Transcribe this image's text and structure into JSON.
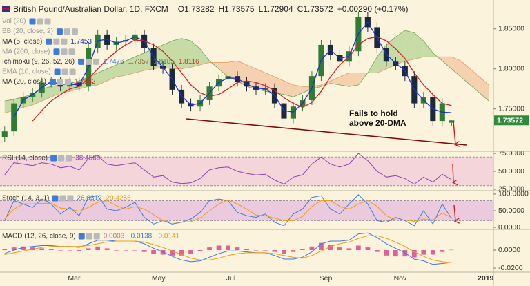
{
  "chart_data": {
    "type": "candlestick",
    "title": "British Pound/Australian Dollar, 1D, FXCM",
    "ohlc": [
      {
        "name": "O",
        "value": 1.73282
      },
      {
        "name": "H",
        "value": 1.73575
      },
      {
        "name": "L",
        "value": 1.72904
      },
      {
        "name": "C",
        "value": 1.73572
      }
    ],
    "change": "+0.00290 (+0.17%)",
    "categories": [
      null,
      null,
      null,
      null,
      null,
      null,
      null,
      "Mar",
      null,
      null,
      null,
      null,
      null,
      null,
      null,
      null,
      "May",
      null,
      null,
      null,
      null,
      null,
      null,
      null,
      "Jul",
      null,
      null,
      null,
      null,
      null,
      null,
      null,
      null,
      null,
      "Sep",
      null,
      null,
      null,
      null,
      null,
      null,
      null,
      "Nov",
      null,
      null,
      null,
      null,
      null,
      null,
      null,
      null,
      "2019",
      null
    ],
    "open": [
      1.715,
      1.722,
      1.757,
      1.765,
      1.77,
      1.783,
      1.784,
      1.778,
      1.783,
      1.778,
      1.826,
      1.843,
      1.83,
      1.834,
      1.836,
      1.843,
      1.826,
      1.804,
      1.8,
      1.774,
      1.757,
      1.753,
      1.761,
      1.778,
      1.787,
      1.791,
      1.784,
      1.778,
      1.774,
      1.776,
      1.757,
      1.738,
      1.753,
      1.761,
      1.791,
      1.83,
      1.817,
      1.809,
      1.822,
      1.865,
      1.852,
      1.826,
      1.809,
      1.804,
      1.791,
      1.757,
      1.765,
      1.735,
      1.73282,
      null,
      null,
      null,
      null
    ],
    "high": [
      1.728,
      1.763,
      1.771,
      1.776,
      1.789,
      1.79,
      1.79,
      1.789,
      1.789,
      1.832,
      1.849,
      1.849,
      1.84,
      1.842,
      1.849,
      1.849,
      1.832,
      1.81,
      1.806,
      1.78,
      1.763,
      1.767,
      1.784,
      1.793,
      1.797,
      1.797,
      1.79,
      1.784,
      1.782,
      1.782,
      1.763,
      1.759,
      1.767,
      1.797,
      1.836,
      1.836,
      1.823,
      1.828,
      1.871,
      1.871,
      1.858,
      1.832,
      1.815,
      1.81,
      1.797,
      1.771,
      1.771,
      1.763,
      1.73575,
      null,
      null,
      null,
      null
    ],
    "low": [
      1.709,
      1.716,
      1.751,
      1.759,
      1.764,
      1.777,
      1.772,
      1.772,
      1.772,
      1.772,
      1.82,
      1.824,
      1.824,
      1.828,
      1.83,
      1.82,
      1.798,
      1.794,
      1.768,
      1.751,
      1.747,
      1.747,
      1.755,
      1.772,
      1.781,
      1.778,
      1.772,
      1.768,
      1.768,
      1.751,
      1.732,
      1.732,
      1.747,
      1.755,
      1.785,
      1.811,
      1.803,
      1.803,
      1.816,
      1.846,
      1.82,
      1.803,
      1.798,
      1.785,
      1.751,
      1.751,
      1.729,
      1.729,
      1.72904,
      null,
      null,
      null,
      null
    ],
    "close": [
      1.722,
      1.757,
      1.765,
      1.77,
      1.783,
      1.784,
      1.778,
      1.783,
      1.778,
      1.826,
      1.843,
      1.83,
      1.834,
      1.836,
      1.843,
      1.826,
      1.804,
      1.8,
      1.774,
      1.757,
      1.753,
      1.761,
      1.778,
      1.787,
      1.791,
      1.784,
      1.778,
      1.774,
      1.776,
      1.757,
      1.738,
      1.753,
      1.761,
      1.791,
      1.83,
      1.817,
      1.809,
      1.822,
      1.865,
      1.852,
      1.826,
      1.809,
      1.804,
      1.791,
      1.757,
      1.765,
      1.735,
      1.757,
      1.73572,
      null,
      null,
      null,
      null
    ],
    "up_color": "#2e7d32",
    "down_color": "#1b2a3a",
    "last_price_color": "#2e8b3a",
    "ylim": [
      1.698,
      1.886
    ],
    "yticks": [
      {
        "value": 1.85,
        "label": "1.85000"
      },
      {
        "value": 1.8,
        "label": "1.80000"
      },
      {
        "value": 1.75,
        "label": "1.75000"
      }
    ],
    "overlays": [
      {
        "name": "Vol (20)",
        "active": false
      },
      {
        "name": "BB (20, close, 2)",
        "active": false
      },
      {
        "name": "MA (5, close)",
        "active": true,
        "color": "#1f2fd6",
        "values": [
          null,
          1.74,
          1.761,
          1.768,
          1.777,
          1.784,
          1.781,
          1.781,
          1.78,
          1.802,
          1.835,
          1.837,
          1.832,
          1.835,
          1.84,
          1.835,
          1.815,
          1.802,
          1.787,
          1.766,
          1.755,
          1.757,
          1.77,
          1.783,
          1.789,
          1.788,
          1.781,
          1.776,
          1.775,
          1.767,
          1.748,
          1.746,
          1.757,
          1.776,
          1.811,
          1.824,
          1.813,
          1.816,
          1.844,
          1.858,
          1.839,
          1.818,
          1.807,
          1.798,
          1.774,
          1.761,
          1.75,
          1.746,
          1.7453,
          null,
          null,
          null,
          null
        ]
      },
      {
        "name": "MA (200, close)",
        "active": false
      },
      {
        "name": "Ichimoku (9, 26, 52, 26)",
        "active": true,
        "readouts": [
          1.7476,
          1.7357,
          1.8185,
          1.8116
        ],
        "readout_colors": [
          "#1f6fd6",
          "#8a6d3b",
          "#3e8e2e",
          "#c0392b"
        ],
        "up_color": "#9cc77a",
        "down_color": "#f2b48c",
        "span_a_color": "#6aa84f",
        "span_b_color": "#e59866",
        "span_a": [
          1.76,
          1.762,
          1.765,
          1.768,
          1.775,
          1.778,
          1.78,
          1.782,
          1.785,
          1.79,
          1.795,
          1.8,
          1.805,
          1.81,
          1.815,
          1.82,
          1.825,
          1.83,
          1.835,
          1.838,
          1.835,
          1.825,
          1.81,
          1.8,
          1.79,
          1.785,
          1.778,
          1.775,
          1.772,
          1.77,
          1.768,
          1.765,
          1.77,
          1.775,
          1.778,
          1.782,
          1.78,
          1.778,
          1.78,
          1.795,
          1.815,
          1.83,
          1.84,
          1.848,
          1.845,
          1.835,
          1.82,
          1.81,
          1.8,
          1.79,
          1.78,
          1.77,
          1.76
        ],
        "span_b": [
          1.745,
          1.748,
          1.752,
          1.755,
          1.76,
          1.765,
          1.77,
          1.772,
          1.775,
          1.778,
          1.78,
          1.785,
          1.79,
          1.792,
          1.795,
          1.798,
          1.8,
          1.802,
          1.8,
          1.8,
          1.802,
          1.805,
          1.808,
          1.808,
          1.808,
          1.81,
          1.805,
          1.8,
          1.795,
          1.79,
          1.785,
          1.78,
          1.778,
          1.778,
          1.78,
          1.785,
          1.79,
          1.795,
          1.795,
          1.795,
          1.795,
          1.8,
          1.805,
          1.81,
          1.812,
          1.815,
          1.815,
          1.815,
          1.815,
          1.81,
          1.8,
          1.79,
          1.78
        ]
      },
      {
        "name": "EMA (10, close)",
        "active": false
      },
      {
        "name": "MA (20, close)",
        "active": true,
        "color": "#d42020",
        "values": [
          null,
          null,
          null,
          1.735,
          1.748,
          1.76,
          1.768,
          1.775,
          1.778,
          1.788,
          1.8,
          1.812,
          1.822,
          1.83,
          1.836,
          1.835,
          1.83,
          1.822,
          1.81,
          1.795,
          1.78,
          1.77,
          1.766,
          1.768,
          1.775,
          1.783,
          1.785,
          1.783,
          1.779,
          1.773,
          1.764,
          1.757,
          1.752,
          1.758,
          1.772,
          1.79,
          1.805,
          1.815,
          1.83,
          1.838,
          1.84,
          1.835,
          1.825,
          1.813,
          1.795,
          1.78,
          1.768,
          1.757,
          1.7542,
          null,
          null,
          null,
          null
        ]
      }
    ],
    "annotations": [
      {
        "lines": [
          "Fails to hold",
          "above 20-DMA"
        ]
      }
    ],
    "panels": [
      {
        "type": "line",
        "name": "RSI (14, close)",
        "ylim": [
          24,
          77
        ],
        "band": [
          30,
          70
        ],
        "band_color": "#f0c8d8",
        "yticks": [
          {
            "value": 75,
            "label": "75.0000"
          },
          {
            "value": 50,
            "label": "50.0000"
          },
          {
            "value": 25,
            "label": "25.0000"
          }
        ],
        "series": [
          {
            "type": "line",
            "color": "#8e44ad",
            "values": [
              45,
              62,
              60,
              58,
              62,
              60,
              55,
              57,
              52,
              68,
              72,
              60,
              58,
              60,
              62,
              52,
              42,
              44,
              35,
              33,
              34,
              40,
              52,
              55,
              56,
              50,
              47,
              45,
              46,
              38,
              32,
              42,
              45,
              60,
              70,
              60,
              56,
              60,
              75,
              65,
              50,
              42,
              44,
              40,
              32,
              42,
              35,
              46,
              38.4569,
              null,
              null,
              null,
              null
            ]
          }
        ]
      },
      {
        "type": "line",
        "name": "Stoch (14, 3, 1)",
        "ylim": [
          -4,
          106
        ],
        "band": [
          20,
          80
        ],
        "band_color": "#e3b8dc",
        "yticks": [
          {
            "value": 100,
            "label": "100.0000"
          },
          {
            "value": 50,
            "label": "50.0000"
          },
          {
            "value": 0,
            "label": "0.0000"
          }
        ],
        "series": [
          {
            "type": "line",
            "color": "#3d7bd9",
            "values": [
              20,
              80,
              70,
              60,
              85,
              70,
              40,
              60,
              35,
              90,
              95,
              55,
              50,
              60,
              75,
              30,
              10,
              20,
              10,
              15,
              25,
              45,
              80,
              85,
              80,
              45,
              35,
              30,
              40,
              15,
              5,
              40,
              55,
              90,
              95,
              55,
              40,
              70,
              98,
              70,
              20,
              15,
              30,
              20,
              5,
              50,
              10,
              70,
              26.0312,
              null,
              null,
              null,
              null
            ]
          },
          {
            "type": "line",
            "color": "#f39c12",
            "values": [
              25,
              55,
              70,
              70,
              72,
              72,
              58,
              55,
              48,
              60,
              75,
              80,
              65,
              55,
              62,
              55,
              38,
              20,
              15,
              15,
              17,
              28,
              50,
              70,
              82,
              70,
              55,
              37,
              35,
              28,
              20,
              20,
              33,
              62,
              80,
              80,
              63,
              55,
              70,
              80,
              63,
              35,
              22,
              22,
              18,
              25,
              22,
              43,
              29.4255,
              null,
              null,
              null,
              null
            ]
          }
        ]
      },
      {
        "type": "line",
        "name": "MACD (12, 26, close, 9)",
        "ylim": [
          -0.0238,
          0.0223
        ],
        "yticks": [
          {
            "value": 0,
            "label": "0.0000"
          },
          {
            "value": -0.02,
            "label": "-0.0200"
          }
        ],
        "series": [
          {
            "type": "bar",
            "color": "#e0609a",
            "values": [
              0.001,
              0.003,
              0.004,
              0.003,
              0.002,
              0.001,
              0,
              0,
              -0.001,
              0.002,
              0.004,
              0.002,
              0,
              0,
              0,
              -0.002,
              -0.004,
              -0.005,
              -0.006,
              -0.006,
              -0.004,
              -0.001,
              0.003,
              0.005,
              0.005,
              0.003,
              0.001,
              0,
              0,
              -0.002,
              -0.004,
              -0.002,
              0.001,
              0.004,
              0.008,
              0.006,
              0.003,
              0.002,
              0.005,
              0.003,
              -0.002,
              -0.006,
              -0.007,
              -0.007,
              -0.008,
              -0.005,
              -0.005,
              -0.002,
              0.0003,
              null,
              null,
              null,
              null
            ]
          },
          {
            "type": "line",
            "color": "#3d7bd9",
            "values": [
              -0.004,
              0,
              0.003,
              0.004,
              0.005,
              0.005,
              0.004,
              0.004,
              0.003,
              0.007,
              0.011,
              0.011,
              0.01,
              0.01,
              0.01,
              0.007,
              0.002,
              -0.002,
              -0.007,
              -0.011,
              -0.013,
              -0.012,
              -0.008,
              -0.004,
              -0.001,
              -0.001,
              -0.002,
              -0.003,
              -0.003,
              -0.006,
              -0.01,
              -0.01,
              -0.008,
              -0.002,
              0.007,
              0.01,
              0.01,
              0.011,
              0.018,
              0.019,
              0.014,
              0.007,
              0.002,
              -0.003,
              -0.01,
              -0.012,
              -0.016,
              -0.015,
              -0.0138,
              null,
              null,
              null,
              null
            ]
          },
          {
            "type": "line",
            "color": "#f39c12",
            "values": [
              -0.005,
              -0.003,
              -0.001,
              0.001,
              0.003,
              0.004,
              0.004,
              0.004,
              0.004,
              0.005,
              0.007,
              0.009,
              0.01,
              0.01,
              0.01,
              0.009,
              0.006,
              0.003,
              -0.001,
              -0.005,
              -0.009,
              -0.011,
              -0.011,
              -0.009,
              -0.006,
              -0.004,
              -0.003,
              -0.003,
              -0.003,
              -0.004,
              -0.006,
              -0.008,
              -0.009,
              -0.006,
              -0.001,
              0.004,
              0.007,
              0.009,
              0.013,
              0.016,
              0.016,
              0.013,
              0.009,
              0.004,
              -0.002,
              -0.007,
              -0.011,
              -0.013,
              -0.0141,
              null,
              null,
              null,
              null
            ]
          }
        ]
      }
    ]
  }
}
